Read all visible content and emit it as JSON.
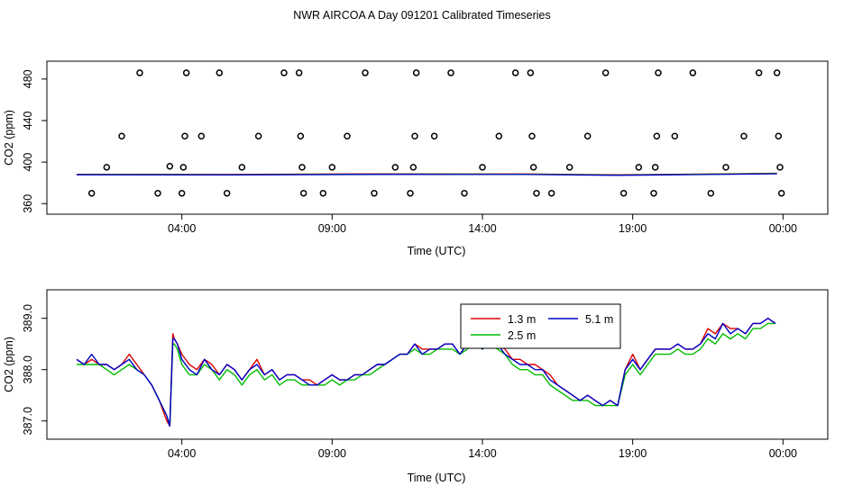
{
  "page_title": "NWR AIRCOA A  Day 091201  Calibrated Timeseries",
  "colors": {
    "s13": "#dd0000",
    "s25": "#00bb00",
    "s51": "#0000cc",
    "axis": "#000000"
  },
  "chart_data": [
    {
      "type": "scatter",
      "xlabel": "Time (UTC)",
      "ylabel": "CO2 (ppm)",
      "xlim": [
        0,
        24
      ],
      "ylim": [
        355,
        492
      ],
      "x_ticks": [
        {
          "v": 3.5,
          "label": "04:00"
        },
        {
          "v": 8.5,
          "label": "09:00"
        },
        {
          "v": 13.5,
          "label": "14:00"
        },
        {
          "v": 18.5,
          "label": "19:00"
        },
        {
          "v": 23.5,
          "label": "00:00"
        }
      ],
      "y_ticks": [
        {
          "v": 360,
          "label": "360"
        },
        {
          "v": 400,
          "label": "400"
        },
        {
          "v": 440,
          "label": "440"
        },
        {
          "v": 480,
          "label": "480"
        }
      ],
      "calibration_points": [
        [
          0.5,
          370
        ],
        [
          1.0,
          395
        ],
        [
          1.5,
          425
        ],
        [
          2.1,
          486
        ],
        [
          2.7,
          370
        ],
        [
          3.1,
          396
        ],
        [
          3.5,
          370
        ],
        [
          3.55,
          395
        ],
        [
          3.6,
          425
        ],
        [
          3.65,
          486
        ],
        [
          4.15,
          425
        ],
        [
          4.75,
          486
        ],
        [
          5.0,
          370
        ],
        [
          5.5,
          395
        ],
        [
          6.05,
          425
        ],
        [
          6.9,
          486
        ],
        [
          7.4,
          486
        ],
        [
          7.45,
          425
        ],
        [
          7.5,
          395
        ],
        [
          7.55,
          370
        ],
        [
          8.2,
          370
        ],
        [
          8.5,
          395
        ],
        [
          9.0,
          425
        ],
        [
          9.6,
          486
        ],
        [
          9.9,
          370
        ],
        [
          10.6,
          395
        ],
        [
          11.1,
          370
        ],
        [
          11.2,
          395
        ],
        [
          11.25,
          425
        ],
        [
          11.3,
          486
        ],
        [
          11.9,
          425
        ],
        [
          12.45,
          486
        ],
        [
          12.9,
          370
        ],
        [
          13.5,
          395
        ],
        [
          14.05,
          425
        ],
        [
          14.6,
          486
        ],
        [
          15.1,
          486
        ],
        [
          15.15,
          425
        ],
        [
          15.2,
          395
        ],
        [
          15.3,
          370
        ],
        [
          15.8,
          370
        ],
        [
          16.4,
          395
        ],
        [
          17.0,
          425
        ],
        [
          17.6,
          486
        ],
        [
          18.2,
          370
        ],
        [
          18.7,
          395
        ],
        [
          19.2,
          370
        ],
        [
          19.25,
          395
        ],
        [
          19.3,
          425
        ],
        [
          19.35,
          486
        ],
        [
          19.9,
          425
        ],
        [
          20.5,
          486
        ],
        [
          21.1,
          370
        ],
        [
          21.6,
          395
        ],
        [
          22.2,
          425
        ],
        [
          22.7,
          486
        ],
        [
          23.3,
          486
        ],
        [
          23.35,
          425
        ],
        [
          23.4,
          395
        ],
        [
          23.45,
          370
        ]
      ],
      "baseline": {
        "x": [
          0,
          5,
          10,
          15,
          18,
          20,
          23.3
        ],
        "y": [
          388.0,
          387.9,
          388.4,
          388.3,
          387.5,
          388.0,
          389.0
        ]
      }
    },
    {
      "type": "line",
      "xlabel": "Time (UTC)",
      "ylabel": "CO2 (ppm)",
      "xlim": [
        0,
        24
      ],
      "ylim": [
        386.75,
        389.45
      ],
      "x_ticks": [
        {
          "v": 3.5,
          "label": "04:00"
        },
        {
          "v": 8.5,
          "label": "09:00"
        },
        {
          "v": 13.5,
          "label": "14:00"
        },
        {
          "v": 18.5,
          "label": "19:00"
        },
        {
          "v": 23.5,
          "label": "00:00"
        }
      ],
      "y_ticks": [
        {
          "v": 387.0,
          "label": "387.0"
        },
        {
          "v": 388.0,
          "label": "388.0"
        },
        {
          "v": 389.0,
          "label": "389.0"
        }
      ],
      "legend": {
        "placement": "top-center",
        "items": [
          {
            "label": "1.3 m",
            "color": "#dd0000"
          },
          {
            "label": "5.1 m",
            "color": "#0000cc"
          },
          {
            "label": "2.5 m",
            "color": "#00bb00"
          }
        ]
      },
      "x": [
        0.0,
        0.25,
        0.5,
        0.75,
        1.0,
        1.25,
        1.5,
        1.75,
        2.0,
        2.25,
        2.5,
        2.75,
        3.0,
        3.1,
        3.2,
        3.25,
        3.35,
        3.5,
        3.75,
        4.0,
        4.25,
        4.5,
        4.75,
        5.0,
        5.25,
        5.5,
        5.75,
        6.0,
        6.25,
        6.5,
        6.75,
        7.0,
        7.25,
        7.5,
        7.75,
        8.0,
        8.25,
        8.5,
        8.75,
        9.0,
        9.25,
        9.5,
        9.75,
        10.0,
        10.25,
        10.5,
        10.75,
        11.0,
        11.25,
        11.5,
        11.75,
        12.0,
        12.25,
        12.5,
        12.75,
        13.0,
        13.25,
        13.5,
        13.75,
        14.0,
        14.25,
        14.5,
        14.75,
        15.0,
        15.25,
        15.5,
        15.75,
        16.0,
        16.25,
        16.5,
        16.75,
        17.0,
        17.25,
        17.5,
        17.75,
        18.0,
        18.25,
        18.5,
        18.75,
        19.0,
        19.25,
        19.5,
        19.75,
        20.0,
        20.25,
        20.5,
        20.75,
        21.0,
        21.25,
        21.5,
        21.75,
        22.0,
        22.25,
        22.5,
        22.75,
        23.0,
        23.25
      ],
      "series": [
        {
          "name": "1.3 m",
          "color": "#dd0000",
          "values": [
            388.2,
            388.1,
            388.2,
            388.1,
            388.1,
            388.0,
            388.1,
            388.3,
            388.1,
            387.9,
            387.7,
            387.4,
            387.0,
            386.9,
            388.7,
            388.6,
            388.5,
            388.3,
            388.1,
            388.0,
            388.2,
            388.1,
            387.9,
            388.1,
            388.0,
            387.8,
            388.0,
            388.2,
            387.9,
            388.0,
            387.8,
            387.9,
            387.9,
            387.8,
            387.8,
            387.7,
            387.8,
            387.9,
            387.8,
            387.8,
            387.9,
            387.9,
            388.0,
            388.1,
            388.1,
            388.2,
            388.3,
            388.3,
            388.5,
            388.4,
            388.4,
            388.4,
            388.5,
            388.5,
            388.3,
            388.5,
            388.6,
            388.4,
            388.6,
            388.5,
            388.4,
            388.2,
            388.2,
            388.1,
            388.1,
            388.0,
            387.9,
            387.7,
            387.6,
            387.5,
            387.4,
            387.5,
            387.4,
            387.3,
            387.4,
            387.3,
            388.0,
            388.3,
            388.0,
            388.2,
            388.4,
            388.4,
            388.4,
            388.5,
            388.4,
            388.4,
            388.5,
            388.8,
            388.7,
            388.9,
            388.8,
            388.8,
            388.7,
            388.9,
            388.9,
            389.0,
            388.9
          ]
        },
        {
          "name": "2.5 m",
          "color": "#00bb00",
          "values": [
            388.1,
            388.1,
            388.1,
            388.1,
            388.0,
            387.9,
            388.0,
            388.1,
            388.0,
            387.9,
            387.7,
            387.4,
            387.1,
            386.9,
            388.5,
            388.5,
            388.4,
            388.1,
            387.9,
            387.9,
            388.1,
            388.0,
            387.8,
            388.0,
            387.9,
            387.7,
            387.9,
            388.0,
            387.8,
            387.9,
            387.7,
            387.8,
            387.8,
            387.7,
            387.7,
            387.7,
            387.7,
            387.8,
            387.7,
            387.8,
            387.8,
            387.9,
            387.9,
            388.0,
            388.1,
            388.2,
            388.3,
            388.3,
            388.4,
            388.3,
            388.3,
            388.4,
            388.4,
            388.4,
            388.3,
            388.4,
            388.5,
            388.4,
            388.5,
            388.4,
            388.3,
            388.1,
            388.0,
            388.0,
            387.9,
            387.9,
            387.7,
            387.6,
            387.5,
            387.4,
            387.4,
            387.4,
            387.3,
            387.3,
            387.3,
            387.3,
            387.9,
            388.1,
            387.9,
            388.1,
            388.3,
            388.3,
            388.3,
            388.4,
            388.3,
            388.3,
            388.4,
            388.6,
            388.5,
            388.7,
            388.6,
            388.7,
            388.6,
            388.8,
            388.8,
            388.9,
            388.9
          ]
        },
        {
          "name": "5.1 m",
          "color": "#0000cc",
          "values": [
            388.2,
            388.1,
            388.3,
            388.1,
            388.1,
            388.0,
            388.1,
            388.2,
            388.0,
            387.9,
            387.7,
            387.4,
            387.1,
            386.9,
            388.6,
            388.6,
            388.5,
            388.2,
            388.0,
            387.9,
            388.2,
            388.0,
            387.9,
            388.1,
            388.0,
            387.8,
            388.0,
            388.1,
            387.9,
            388.0,
            387.8,
            387.9,
            387.9,
            387.8,
            387.7,
            387.7,
            387.8,
            387.9,
            387.8,
            387.8,
            387.9,
            387.9,
            388.0,
            388.1,
            388.1,
            388.2,
            388.3,
            388.3,
            388.5,
            388.3,
            388.4,
            388.4,
            388.5,
            388.5,
            388.3,
            388.5,
            388.6,
            388.4,
            388.6,
            388.5,
            388.3,
            388.2,
            388.1,
            388.1,
            388.0,
            388.0,
            387.8,
            387.7,
            387.6,
            387.5,
            387.4,
            387.5,
            387.4,
            387.3,
            387.4,
            387.3,
            388.0,
            388.2,
            388.0,
            388.2,
            388.4,
            388.4,
            388.4,
            388.5,
            388.4,
            388.4,
            388.5,
            388.7,
            388.6,
            388.9,
            388.7,
            388.8,
            388.7,
            388.9,
            388.9,
            389.0,
            388.9
          ]
        }
      ]
    }
  ]
}
